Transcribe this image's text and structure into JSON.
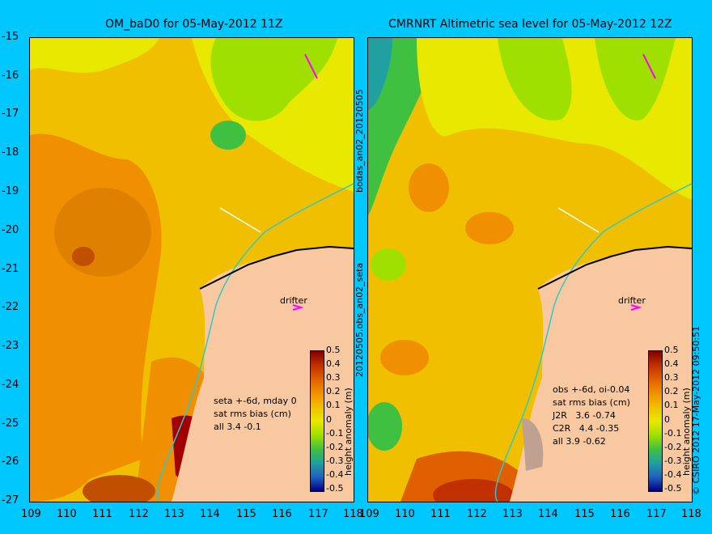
{
  "left_panel": {
    "title": "OM_baD0 for 05-May-2012 11Z",
    "stats_lines": [
      "seta +-6d, mday 0",
      "sat rms bias (cm)",
      "all 3.4 -0.1"
    ],
    "drifter_label": "drifter"
  },
  "right_panel": {
    "title": "CMRNRT Altimetric sea level  for 05-May-2012 12Z",
    "stats_lines": [
      "obs +-6d, oi-0.04",
      "sat rms bias (cm)",
      "J2R   3.6 -0.74",
      "C2R   4.4 -0.35",
      "all 3.9 -0.62"
    ],
    "drifter_label": "drifter"
  },
  "side_labels": {
    "analysis_file": "bodas_an02_20120505",
    "obs_file": "20120505.obs_an02_seta"
  },
  "colorbar": {
    "title": "height anomaly (m)",
    "ticks": [
      "0.5",
      "0.4",
      "0.3",
      "0.2",
      "0.1",
      "0",
      "-0.1",
      "-0.2",
      "-0.3",
      "-0.4",
      "-0.5"
    ]
  },
  "copyright": "© CSIRO 2012  17-May-2012 09:50:51",
  "axes": {
    "y_ticks": [
      "-15",
      "-16",
      "-17",
      "-18",
      "-19",
      "-20",
      "-21",
      "-22",
      "-23",
      "-24",
      "-25",
      "-26",
      "-27"
    ],
    "x_ticks": [
      "109",
      "110",
      "111",
      "112",
      "113",
      "114",
      "115",
      "116",
      "117",
      "118"
    ],
    "lat_range": [
      -27,
      -15
    ],
    "lon_range": [
      109,
      118
    ]
  },
  "colors": {
    "background": "#00c8ff",
    "land": "#f8c8a0",
    "coastline": "#30c8c8",
    "drifter": "#ff00ff",
    "colorbar_stops": [
      "#800000",
      "#c03000",
      "#e06000",
      "#f09000",
      "#f0c000",
      "#e8e800",
      "#a0e000",
      "#40c040",
      "#20a0a0",
      "#2060c0",
      "#000080"
    ]
  }
}
